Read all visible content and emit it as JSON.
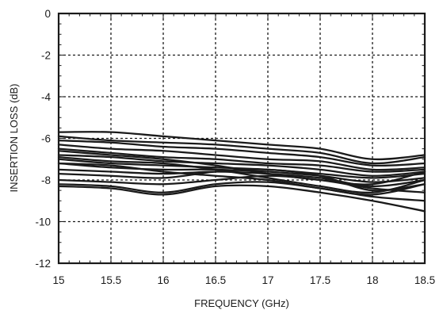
{
  "chart_data": {
    "type": "line",
    "title": "",
    "xlabel": "FREQUENCY (GHz)",
    "ylabel": "INSERTION LOSS  (dB)",
    "xlim": [
      15,
      18.5
    ],
    "ylim": [
      -12,
      0
    ],
    "x_ticks": [
      15,
      15.5,
      16,
      16.5,
      17,
      17.5,
      18,
      18.5
    ],
    "x_tick_labels": [
      "15",
      "15.5",
      "16",
      "16.5",
      "17",
      "17.5",
      "18",
      "18.5"
    ],
    "y_ticks": [
      0,
      -2,
      -4,
      -6,
      -8,
      -10,
      -12
    ],
    "y_tick_labels": [
      "0",
      "-2",
      "-4",
      "-6",
      "-8",
      "-10",
      "-12"
    ],
    "grid": true,
    "grid_style": "dotted",
    "line_color": "#1a1a1a",
    "x": [
      15,
      15.5,
      16,
      16.5,
      17,
      17.5,
      18,
      18.5
    ],
    "series": [
      {
        "values": [
          -5.7,
          -5.7,
          -5.9,
          -6.1,
          -6.3,
          -6.5,
          -7.0,
          -6.8
        ]
      },
      {
        "values": [
          -5.9,
          -6.1,
          -6.2,
          -6.3,
          -6.5,
          -6.7,
          -7.2,
          -6.9
        ]
      },
      {
        "values": [
          -6.1,
          -6.2,
          -6.4,
          -6.5,
          -6.7,
          -6.9,
          -7.3,
          -7.2
        ]
      },
      {
        "values": [
          -6.3,
          -6.5,
          -6.6,
          -6.8,
          -7.0,
          -7.1,
          -7.5,
          -7.4
        ]
      },
      {
        "values": [
          -6.5,
          -6.7,
          -6.9,
          -7.0,
          -7.2,
          -7.3,
          -7.6,
          -7.5
        ]
      },
      {
        "values": [
          -6.8,
          -6.9,
          -7.1,
          -7.2,
          -7.3,
          -7.5,
          -7.8,
          -7.6
        ]
      },
      {
        "values": [
          -7.0,
          -7.2,
          -7.3,
          -7.4,
          -7.5,
          -7.7,
          -7.9,
          -7.7
        ]
      },
      {
        "values": [
          -7.2,
          -7.4,
          -7.5,
          -7.5,
          -7.6,
          -7.8,
          -8.1,
          -7.9
        ]
      },
      {
        "values": [
          -7.5,
          -7.6,
          -7.7,
          -7.6,
          -7.7,
          -7.9,
          -8.3,
          -8.0
        ]
      },
      {
        "values": [
          -7.7,
          -7.8,
          -7.9,
          -7.6,
          -7.5,
          -7.8,
          -8.5,
          -8.2
        ]
      },
      {
        "values": [
          -8.0,
          -8.1,
          -8.2,
          -8.0,
          -7.8,
          -8.0,
          -8.4,
          -8.6
        ]
      },
      {
        "values": [
          -8.2,
          -8.3,
          -8.6,
          -8.2,
          -8.1,
          -8.4,
          -8.8,
          -9.0
        ]
      },
      {
        "values": [
          -8.3,
          -8.4,
          -8.7,
          -8.3,
          -8.3,
          -8.6,
          -9.0,
          -9.5
        ]
      },
      {
        "values": [
          -7.2,
          -7.3,
          -7.6,
          -7.8,
          -8.0,
          -8.4,
          -8.7,
          -8.2
        ]
      },
      {
        "values": [
          -6.9,
          -7.1,
          -7.2,
          -7.5,
          -7.9,
          -8.3,
          -8.6,
          -8.0
        ]
      },
      {
        "values": [
          -6.6,
          -6.8,
          -7.0,
          -7.3,
          -7.7,
          -8.0,
          -8.2,
          -7.6
        ]
      }
    ]
  }
}
